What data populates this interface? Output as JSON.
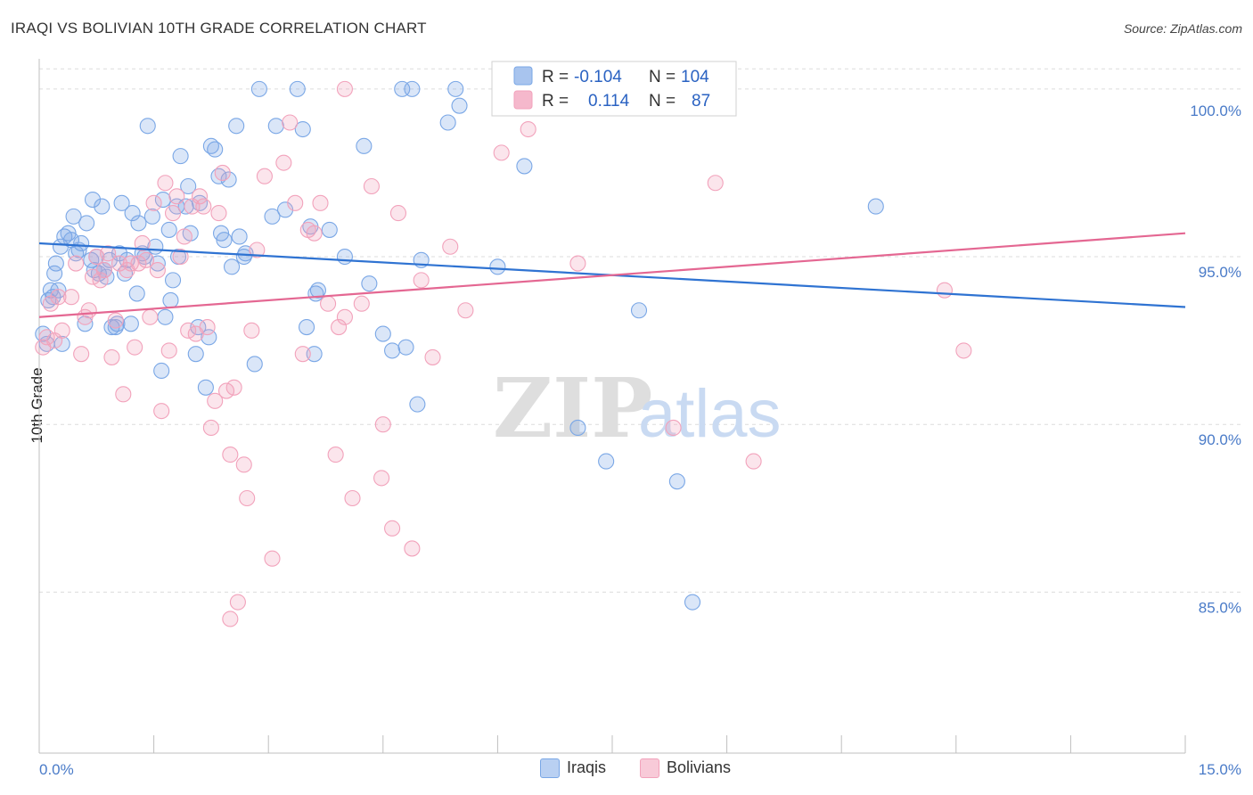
{
  "title": "IRAQI VS BOLIVIAN 10TH GRADE CORRELATION CHART",
  "source": "Source: ZipAtlas.com",
  "watermark_zip": "ZIP",
  "watermark_atlas": "atlas",
  "legend": {
    "r_label": "R =",
    "n_label": "N =",
    "rows": [
      {
        "r": "-0.104",
        "n": "104",
        "color": "#a8c4ee"
      },
      {
        "r": "0.114",
        "n": "87",
        "color": "#f5b8cc"
      }
    ]
  },
  "bottom_legend": {
    "series1": "Iraqis",
    "series2": "Bolivians"
  },
  "chart_data": {
    "type": "scatter",
    "xlabel": "",
    "ylabel": "10th Grade",
    "xlim": [
      0,
      15
    ],
    "ylim": [
      80.2,
      100.9
    ],
    "x_tick_labels": [
      "0.0%",
      "15.0%"
    ],
    "y_ticks": [
      85,
      90,
      95,
      100
    ],
    "y_tick_labels": [
      "85.0%",
      "90.0%",
      "95.0%",
      "100.0%"
    ],
    "grid": true,
    "series": [
      {
        "name": "Iraqis",
        "color": "#7aa7e6",
        "line_color": "#2f73d2",
        "trend": [
          [
            0,
            95.4
          ],
          [
            15,
            93.5
          ]
        ],
        "points": [
          [
            0.05,
            92.7
          ],
          [
            0.1,
            92.4
          ],
          [
            0.12,
            93.7
          ],
          [
            0.15,
            94.0
          ],
          [
            0.18,
            93.8
          ],
          [
            0.2,
            94.5
          ],
          [
            0.22,
            94.8
          ],
          [
            0.28,
            95.3
          ],
          [
            0.33,
            95.6
          ],
          [
            0.38,
            95.7
          ],
          [
            0.42,
            95.5
          ],
          [
            0.45,
            96.2
          ],
          [
            0.52,
            95.2
          ],
          [
            0.55,
            95.4
          ],
          [
            0.6,
            93.0
          ],
          [
            0.62,
            96.0
          ],
          [
            0.68,
            94.9
          ],
          [
            0.7,
            96.7
          ],
          [
            0.75,
            95.0
          ],
          [
            0.78,
            94.5
          ],
          [
            0.82,
            96.5
          ],
          [
            0.85,
            94.6
          ],
          [
            0.88,
            94.4
          ],
          [
            0.92,
            94.9
          ],
          [
            0.95,
            92.9
          ],
          [
            1.0,
            92.9
          ],
          [
            1.05,
            95.1
          ],
          [
            1.08,
            96.6
          ],
          [
            1.12,
            94.5
          ],
          [
            1.15,
            94.9
          ],
          [
            1.2,
            93.0
          ],
          [
            1.22,
            96.3
          ],
          [
            1.28,
            93.9
          ],
          [
            1.3,
            96.0
          ],
          [
            1.38,
            95.0
          ],
          [
            1.42,
            98.9
          ],
          [
            1.48,
            96.2
          ],
          [
            1.52,
            95.3
          ],
          [
            1.55,
            94.8
          ],
          [
            1.6,
            91.6
          ],
          [
            1.62,
            96.7
          ],
          [
            1.65,
            93.2
          ],
          [
            1.7,
            95.8
          ],
          [
            1.72,
            93.7
          ],
          [
            1.75,
            94.3
          ],
          [
            1.8,
            96.5
          ],
          [
            1.82,
            95.0
          ],
          [
            1.85,
            98.0
          ],
          [
            1.92,
            96.5
          ],
          [
            1.95,
            97.1
          ],
          [
            1.98,
            95.7
          ],
          [
            2.05,
            92.1
          ],
          [
            2.08,
            92.9
          ],
          [
            2.1,
            96.6
          ],
          [
            2.18,
            91.1
          ],
          [
            2.22,
            92.6
          ],
          [
            2.25,
            98.3
          ],
          [
            2.3,
            98.2
          ],
          [
            2.35,
            97.4
          ],
          [
            2.38,
            95.7
          ],
          [
            2.42,
            95.5
          ],
          [
            2.48,
            97.3
          ],
          [
            2.52,
            94.7
          ],
          [
            2.58,
            98.9
          ],
          [
            2.62,
            95.6
          ],
          [
            2.68,
            95.0
          ],
          [
            2.7,
            95.1
          ],
          [
            2.82,
            91.8
          ],
          [
            2.88,
            100.0
          ],
          [
            3.05,
            96.2
          ],
          [
            3.1,
            98.9
          ],
          [
            3.22,
            96.4
          ],
          [
            3.38,
            100.0
          ],
          [
            3.45,
            98.8
          ],
          [
            3.5,
            92.9
          ],
          [
            3.55,
            95.9
          ],
          [
            3.6,
            92.1
          ],
          [
            3.62,
            93.9
          ],
          [
            3.65,
            94.0
          ],
          [
            3.8,
            95.8
          ],
          [
            4.0,
            95.0
          ],
          [
            4.25,
            98.3
          ],
          [
            4.32,
            94.2
          ],
          [
            4.5,
            92.7
          ],
          [
            4.62,
            92.2
          ],
          [
            4.75,
            100.0
          ],
          [
            4.8,
            92.3
          ],
          [
            4.88,
            100.0
          ],
          [
            4.95,
            90.6
          ],
          [
            5.0,
            94.9
          ],
          [
            5.35,
            99.0
          ],
          [
            5.45,
            100.0
          ],
          [
            5.5,
            99.5
          ],
          [
            6.0,
            94.7
          ],
          [
            6.35,
            97.7
          ],
          [
            7.05,
            89.9
          ],
          [
            7.42,
            88.9
          ],
          [
            7.85,
            93.4
          ],
          [
            8.35,
            88.3
          ],
          [
            8.55,
            84.7
          ],
          [
            10.95,
            96.5
          ],
          [
            0.25,
            94.0
          ],
          [
            0.3,
            92.4
          ],
          [
            0.48,
            95.1
          ],
          [
            0.72,
            94.6
          ],
          [
            1.02,
            93.0
          ],
          [
            1.35,
            95.1
          ]
        ]
      },
      {
        "name": "Bolivians",
        "color": "#f2a2bb",
        "line_color": "#e46792",
        "trend": [
          [
            0,
            93.2
          ],
          [
            15,
            95.7
          ]
        ],
        "points": [
          [
            0.05,
            92.3
          ],
          [
            0.1,
            92.6
          ],
          [
            0.15,
            93.6
          ],
          [
            0.2,
            92.5
          ],
          [
            0.25,
            93.8
          ],
          [
            0.3,
            92.8
          ],
          [
            0.42,
            93.8
          ],
          [
            0.48,
            94.8
          ],
          [
            0.55,
            92.1
          ],
          [
            0.6,
            93.2
          ],
          [
            0.65,
            93.4
          ],
          [
            0.7,
            94.4
          ],
          [
            0.75,
            95.0
          ],
          [
            0.8,
            94.3
          ],
          [
            0.85,
            94.6
          ],
          [
            0.9,
            95.1
          ],
          [
            0.95,
            92.0
          ],
          [
            1.0,
            93.1
          ],
          [
            1.05,
            94.8
          ],
          [
            1.1,
            90.9
          ],
          [
            1.15,
            94.6
          ],
          [
            1.2,
            94.8
          ],
          [
            1.25,
            92.3
          ],
          [
            1.3,
            94.8
          ],
          [
            1.35,
            95.4
          ],
          [
            1.4,
            94.9
          ],
          [
            1.45,
            93.2
          ],
          [
            1.5,
            96.6
          ],
          [
            1.55,
            94.6
          ],
          [
            1.6,
            90.4
          ],
          [
            1.65,
            97.2
          ],
          [
            1.7,
            92.2
          ],
          [
            1.75,
            96.3
          ],
          [
            1.8,
            96.8
          ],
          [
            1.85,
            95.0
          ],
          [
            1.9,
            95.6
          ],
          [
            1.95,
            92.8
          ],
          [
            2.0,
            96.5
          ],
          [
            2.05,
            92.7
          ],
          [
            2.1,
            96.8
          ],
          [
            2.15,
            96.5
          ],
          [
            2.2,
            92.9
          ],
          [
            2.25,
            89.9
          ],
          [
            2.3,
            90.7
          ],
          [
            2.35,
            96.3
          ],
          [
            2.4,
            97.5
          ],
          [
            2.45,
            91.0
          ],
          [
            2.5,
            89.1
          ],
          [
            2.55,
            91.1
          ],
          [
            2.6,
            84.7
          ],
          [
            2.68,
            88.8
          ],
          [
            2.72,
            87.8
          ],
          [
            2.78,
            92.8
          ],
          [
            2.85,
            95.2
          ],
          [
            2.95,
            97.4
          ],
          [
            3.05,
            86.0
          ],
          [
            3.2,
            97.8
          ],
          [
            3.28,
            99.0
          ],
          [
            3.35,
            96.6
          ],
          [
            3.45,
            92.1
          ],
          [
            3.52,
            95.8
          ],
          [
            3.6,
            95.7
          ],
          [
            3.68,
            96.6
          ],
          [
            3.78,
            93.6
          ],
          [
            3.88,
            89.1
          ],
          [
            3.92,
            92.9
          ],
          [
            4.0,
            93.2
          ],
          [
            4.1,
            87.8
          ],
          [
            4.22,
            93.6
          ],
          [
            4.35,
            97.1
          ],
          [
            4.48,
            88.4
          ],
          [
            4.5,
            90.0
          ],
          [
            4.62,
            86.9
          ],
          [
            4.7,
            96.3
          ],
          [
            4.88,
            86.3
          ],
          [
            5.0,
            94.3
          ],
          [
            5.15,
            92.0
          ],
          [
            5.38,
            95.3
          ],
          [
            5.58,
            93.4
          ],
          [
            6.05,
            98.1
          ],
          [
            6.4,
            98.8
          ],
          [
            7.05,
            94.8
          ],
          [
            8.3,
            89.9
          ],
          [
            8.85,
            97.2
          ],
          [
            9.35,
            88.9
          ],
          [
            11.85,
            94.0
          ],
          [
            12.1,
            92.2
          ],
          [
            2.5,
            84.2
          ],
          [
            4.0,
            100.0
          ]
        ]
      }
    ]
  }
}
